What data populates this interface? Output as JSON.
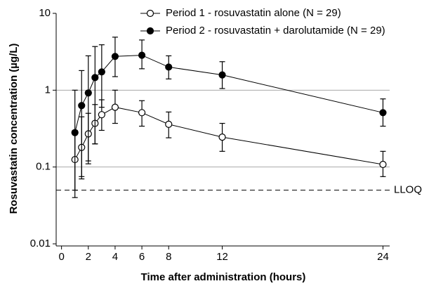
{
  "chart_data": {
    "type": "line",
    "y_scale": "log",
    "x_label": "Time after administration (hours)",
    "y_label": "Rosuvastatin concentration (µg/L)",
    "x": [
      1,
      1.5,
      2,
      2.5,
      3,
      4,
      6,
      8,
      12,
      24
    ],
    "series": [
      {
        "name": "Period 1 - rosuvastatin alone (N = 29)",
        "color": "#000000",
        "marker": "open",
        "values": [
          0.125,
          0.18,
          0.27,
          0.37,
          0.48,
          0.6,
          0.51,
          0.36,
          0.245,
          0.108
        ],
        "lower": [
          0.04,
          0.075,
          0.12,
          0.2,
          0.3,
          0.37,
          0.34,
          0.24,
          0.16,
          0.075
        ],
        "upper": [
          0.3,
          0.45,
          0.5,
          0.65,
          0.75,
          1.0,
          0.73,
          0.52,
          0.37,
          0.16
        ]
      },
      {
        "name": "Period 2 - rosuvastatin + darolutamide (N = 29)",
        "color": "#000000",
        "marker": "filled",
        "values": [
          0.28,
          0.63,
          0.92,
          1.46,
          1.73,
          2.75,
          2.85,
          2.0,
          1.58,
          0.51
        ],
        "lower": [
          0.05,
          0.07,
          0.11,
          0.2,
          0.6,
          1.5,
          1.9,
          1.4,
          1.05,
          0.34
        ],
        "upper": [
          1.0,
          1.8,
          2.8,
          3.7,
          3.9,
          4.9,
          4.5,
          2.8,
          2.35,
          0.77
        ]
      }
    ],
    "xlim": [
      -0.4,
      24.5
    ],
    "xticks": [
      0,
      2,
      4,
      6,
      8,
      12,
      24
    ],
    "ylim": [
      0.01,
      10
    ],
    "yticks": [
      0.01,
      0.1,
      1,
      10
    ],
    "gridlines": [
      0.1,
      1
    ],
    "reference_line": {
      "value": 0.05,
      "label": "LLOQ"
    },
    "legend": "top-right"
  }
}
